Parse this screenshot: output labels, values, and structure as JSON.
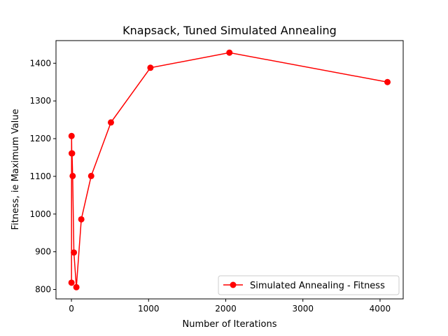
{
  "chart_data": {
    "type": "line",
    "title": "Knapsack, Tuned Simulated Annealing",
    "xlabel": "Number of Iterations",
    "ylabel": "Fitness, ie Maximum Value",
    "xlim": [
      -200,
      4300
    ],
    "ylim": [
      775,
      1460
    ],
    "x_ticks": [
      0,
      1000,
      2000,
      3000,
      4000
    ],
    "y_ticks": [
      800,
      900,
      1000,
      1100,
      1200,
      1300,
      1400
    ],
    "legend_position": "lower-right",
    "grid": false,
    "series": [
      {
        "name": "Simulated Annealing - Fitness",
        "color": "#ff0000",
        "marker": "circle",
        "x": [
          1,
          2,
          4,
          8,
          16,
          32,
          64,
          128,
          256,
          512,
          1024,
          2048,
          4096
        ],
        "y": [
          818,
          1207,
          1161,
          1161,
          1101,
          898,
          806,
          986,
          1101,
          1243,
          1388,
          1428,
          1350
        ]
      }
    ]
  }
}
